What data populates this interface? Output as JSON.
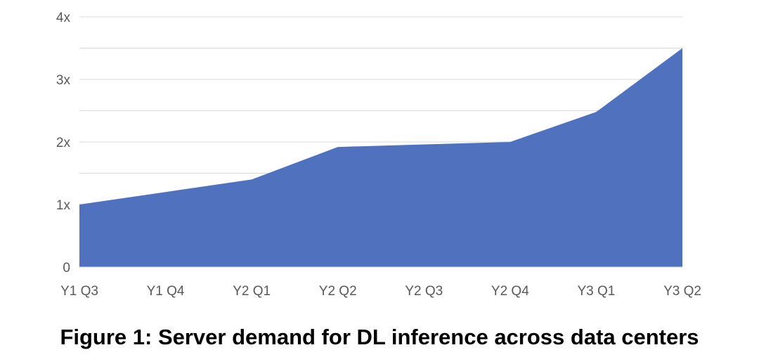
{
  "chart_data": {
    "type": "area",
    "categories": [
      "Y1 Q3",
      "Y1 Q4",
      "Y2 Q1",
      "Y2 Q2",
      "Y2 Q3",
      "Y2 Q4",
      "Y3 Q1",
      "Y3 Q2"
    ],
    "values": [
      1.0,
      1.2,
      1.4,
      1.92,
      1.96,
      2.0,
      2.48,
      3.5
    ],
    "y_ticks": [
      {
        "value": 0,
        "label": "0"
      },
      {
        "value": 1,
        "label": "1x"
      },
      {
        "value": 2,
        "label": "2x"
      },
      {
        "value": 3,
        "label": "3x"
      },
      {
        "value": 4,
        "label": "4x"
      }
    ],
    "ylim": [
      0,
      4
    ],
    "grid": true,
    "fill_color": "#4f71be",
    "grid_color": "#d9d9d9",
    "title": "",
    "xlabel": "",
    "ylabel": ""
  },
  "caption": "Figure 1: Server demand for DL inference across data centers"
}
